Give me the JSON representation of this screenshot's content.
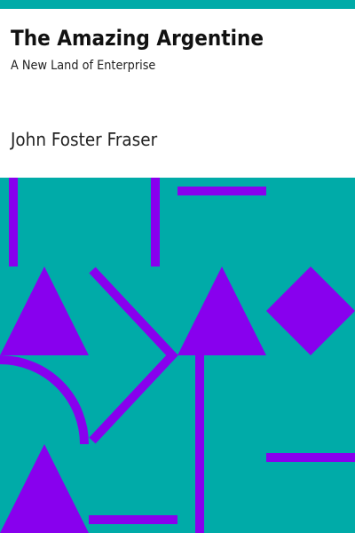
{
  "cover": {
    "title": "The Amazing Argentine",
    "subtitle": "A New Land of Enterprise",
    "author": "John Foster Fraser"
  },
  "colors": {
    "background": "#ffffff",
    "teal": "#00aba8",
    "purple": "#8800ee",
    "title_text": "#111111",
    "body_text": "#222222"
  }
}
